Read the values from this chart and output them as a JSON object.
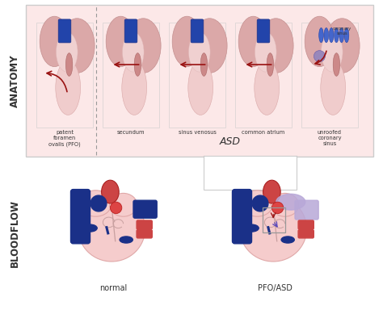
{
  "bg_color": "#ffffff",
  "anatomy_bg": "#fce8e8",
  "panel_bg": "#fce8e8",
  "heart_pink_light": "#f5c8c8",
  "heart_pink_med": "#e8a8a8",
  "heart_pink_dark": "#d48888",
  "blue_dark": "#1a3088",
  "blue_med": "#2244aa",
  "red_dark": "#cc3333",
  "red_med": "#dd4444",
  "lavender": "#b8a8d8",
  "lavender_light": "#d0c8e8",
  "arrow_red": "#991111",
  "arrow_blue": "#2233aa",
  "text_color": "#333333",
  "panel_border": "#cccccc",
  "box_border": "#999999",
  "dashed_color": "#999999",
  "anatomy_label": "ANATOMY",
  "bloodflow_label": "BLOODFLOW",
  "normal_label": "normal",
  "pfo_asd_label": "PFO/ASD",
  "asd_label": "ASD",
  "coronary_label": "coronary\nsinus",
  "panel_labels": [
    "patent\nforamen\novalis (PFO)",
    "secundum",
    "sinus venosus",
    "common atrium",
    "unroofed\ncoronary\nsinus"
  ]
}
